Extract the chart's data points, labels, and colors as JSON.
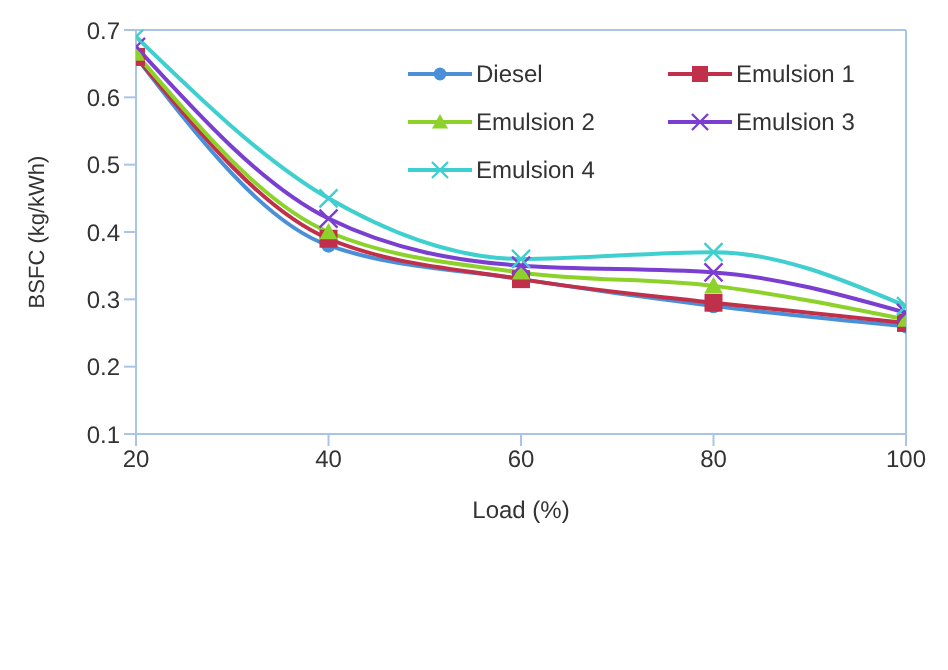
{
  "chart_data": {
    "type": "line",
    "xlabel": "Load (%)",
    "ylabel": "BSFC (kg/kWh)",
    "x": [
      20,
      40,
      60,
      80,
      100
    ],
    "xlim": [
      20,
      100
    ],
    "xticks": [
      20,
      40,
      60,
      80,
      100
    ],
    "ylim": [
      0.1,
      0.7
    ],
    "yticks": [
      0.1,
      0.2,
      0.3,
      0.4,
      0.5,
      0.6,
      0.7
    ],
    "grid": false,
    "legend": "top right",
    "series": [
      {
        "name": "Diesel",
        "color": "#4a90d9",
        "marker": "circle",
        "values": [
          0.66,
          0.38,
          0.33,
          0.29,
          0.26
        ]
      },
      {
        "name": "Emulsion 1",
        "color": "#c0304a",
        "marker": "square",
        "values": [
          0.66,
          0.39,
          0.33,
          0.295,
          0.265
        ]
      },
      {
        "name": "Emulsion 2",
        "color": "#8cd22a",
        "marker": "triangle",
        "values": [
          0.665,
          0.4,
          0.34,
          0.32,
          0.27
        ]
      },
      {
        "name": "Emulsion 3",
        "color": "#7a3fd0",
        "marker": "cross",
        "values": [
          0.675,
          0.42,
          0.35,
          0.34,
          0.28
        ]
      },
      {
        "name": "Emulsion 4",
        "color": "#3fcfcf",
        "marker": "cross",
        "values": [
          0.69,
          0.45,
          0.36,
          0.37,
          0.29
        ]
      }
    ]
  }
}
